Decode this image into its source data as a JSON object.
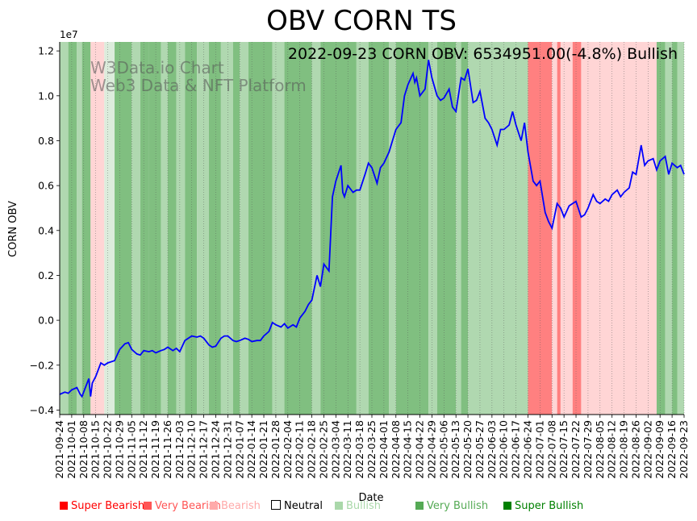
{
  "chart_data": {
    "type": "line",
    "title": "OBV CORN TS",
    "annotation": "2022-09-23 CORN OBV: 6534951.00(-4.8%) Bullish",
    "watermark": [
      "W3Data.io Chart",
      "Web3 Data & NFT Platform"
    ],
    "xlabel": "Date",
    "ylabel": "CORN OBV",
    "y_offset_label": "1e7",
    "ylim": [
      -4.2,
      12.4
    ],
    "y_ticks": [
      -0.4,
      -0.2,
      0.0,
      0.2,
      0.4,
      0.6,
      0.8,
      1.0,
      1.2
    ],
    "y_tick_labels": [
      "−0.4",
      "−0.2",
      "0.0",
      "0.2",
      "0.4",
      "0.6",
      "0.8",
      "1.0",
      "1.2"
    ],
    "x_range": [
      "2021-09-24",
      "2022-09-23"
    ],
    "x_ticks": [
      "2021-09-24",
      "2021-10-01",
      "2021-10-08",
      "2021-10-15",
      "2021-10-22",
      "2021-10-29",
      "2021-11-05",
      "2021-11-12",
      "2021-11-19",
      "2021-11-26",
      "2021-12-03",
      "2021-12-10",
      "2021-12-17",
      "2021-12-24",
      "2021-12-31",
      "2022-01-07",
      "2022-01-14",
      "2022-01-21",
      "2022-01-28",
      "2022-02-04",
      "2022-02-11",
      "2022-02-18",
      "2022-02-25",
      "2022-03-04",
      "2022-03-11",
      "2022-03-18",
      "2022-03-25",
      "2022-04-01",
      "2022-04-08",
      "2022-04-15",
      "2022-04-22",
      "2022-04-29",
      "2022-05-06",
      "2022-05-13",
      "2022-05-20",
      "2022-05-27",
      "2022-06-03",
      "2022-06-10",
      "2022-06-17",
      "2022-06-24",
      "2022-07-01",
      "2022-07-08",
      "2022-07-15",
      "2022-07-22",
      "2022-07-29",
      "2022-08-05",
      "2022-08-12",
      "2022-08-19",
      "2022-08-26",
      "2022-09-02",
      "2022-09-09",
      "2022-09-16",
      "2022-09-23"
    ],
    "grid": "vertical-dotted",
    "series": [
      {
        "color": "#0000ff",
        "points": [
          [
            "2021-09-24",
            -3.3
          ],
          [
            "2021-09-27",
            -3.2
          ],
          [
            "2021-09-29",
            -3.25
          ],
          [
            "2021-10-01",
            -3.1
          ],
          [
            "2021-10-04",
            -3.0
          ],
          [
            "2021-10-06",
            -3.3
          ],
          [
            "2021-10-07",
            -3.4
          ],
          [
            "2021-10-11",
            -2.6
          ],
          [
            "2021-10-12",
            -3.4
          ],
          [
            "2021-10-13",
            -2.8
          ],
          [
            "2021-10-15",
            -2.5
          ],
          [
            "2021-10-18",
            -1.9
          ],
          [
            "2021-10-20",
            -2.0
          ],
          [
            "2021-10-22",
            -1.9
          ],
          [
            "2021-10-26",
            -1.8
          ],
          [
            "2021-10-29",
            -1.3
          ],
          [
            "2021-11-01",
            -1.05
          ],
          [
            "2021-11-03",
            -1.0
          ],
          [
            "2021-11-05",
            -1.3
          ],
          [
            "2021-11-08",
            -1.5
          ],
          [
            "2021-11-10",
            -1.55
          ],
          [
            "2021-11-12",
            -1.35
          ],
          [
            "2021-11-15",
            -1.4
          ],
          [
            "2021-11-17",
            -1.35
          ],
          [
            "2021-11-19",
            -1.45
          ],
          [
            "2021-11-22",
            -1.35
          ],
          [
            "2021-11-24",
            -1.3
          ],
          [
            "2021-11-26",
            -1.2
          ],
          [
            "2021-11-29",
            -1.35
          ],
          [
            "2021-12-01",
            -1.25
          ],
          [
            "2021-12-03",
            -1.4
          ],
          [
            "2021-12-06",
            -0.9
          ],
          [
            "2021-12-08",
            -0.8
          ],
          [
            "2021-12-10",
            -0.7
          ],
          [
            "2021-12-13",
            -0.75
          ],
          [
            "2021-12-15",
            -0.7
          ],
          [
            "2021-12-17",
            -0.8
          ],
          [
            "2021-12-20",
            -1.1
          ],
          [
            "2021-12-22",
            -1.2
          ],
          [
            "2021-12-24",
            -1.15
          ],
          [
            "2021-12-27",
            -0.8
          ],
          [
            "2021-12-29",
            -0.7
          ],
          [
            "2021-12-31",
            -0.7
          ],
          [
            "2022-01-03",
            -0.9
          ],
          [
            "2022-01-05",
            -0.95
          ],
          [
            "2022-01-07",
            -0.9
          ],
          [
            "2022-01-10",
            -0.8
          ],
          [
            "2022-01-12",
            -0.85
          ],
          [
            "2022-01-14",
            -0.95
          ],
          [
            "2022-01-17",
            -0.9
          ],
          [
            "2022-01-19",
            -0.9
          ],
          [
            "2022-01-21",
            -0.7
          ],
          [
            "2022-01-24",
            -0.5
          ],
          [
            "2022-01-26",
            -0.1
          ],
          [
            "2022-01-28",
            -0.2
          ],
          [
            "2022-01-31",
            -0.3
          ],
          [
            "2022-02-02",
            -0.15
          ],
          [
            "2022-02-04",
            -0.35
          ],
          [
            "2022-02-07",
            -0.2
          ],
          [
            "2022-02-09",
            -0.3
          ],
          [
            "2022-02-11",
            0.1
          ],
          [
            "2022-02-14",
            0.4
          ],
          [
            "2022-02-16",
            0.7
          ],
          [
            "2022-02-18",
            0.9
          ],
          [
            "2022-02-21",
            2.0
          ],
          [
            "2022-02-23",
            1.5
          ],
          [
            "2022-02-25",
            2.5
          ],
          [
            "2022-02-28",
            2.2
          ],
          [
            "2022-03-02",
            5.5
          ],
          [
            "2022-03-04",
            6.2
          ],
          [
            "2022-03-07",
            6.9
          ],
          [
            "2022-03-08",
            5.7
          ],
          [
            "2022-03-09",
            5.5
          ],
          [
            "2022-03-11",
            6.0
          ],
          [
            "2022-03-14",
            5.7
          ],
          [
            "2022-03-16",
            5.8
          ],
          [
            "2022-03-18",
            5.8
          ],
          [
            "2022-03-21",
            6.5
          ],
          [
            "2022-03-23",
            7.0
          ],
          [
            "2022-03-25",
            6.8
          ],
          [
            "2022-03-28",
            6.1
          ],
          [
            "2022-03-30",
            6.8
          ],
          [
            "2022-04-01",
            7.0
          ],
          [
            "2022-04-04",
            7.5
          ],
          [
            "2022-04-06",
            8.0
          ],
          [
            "2022-04-08",
            8.5
          ],
          [
            "2022-04-11",
            8.8
          ],
          [
            "2022-04-13",
            10.0
          ],
          [
            "2022-04-15",
            10.5
          ],
          [
            "2022-04-18",
            11.0
          ],
          [
            "2022-04-19",
            10.6
          ],
          [
            "2022-04-20",
            10.8
          ],
          [
            "2022-04-22",
            10.0
          ],
          [
            "2022-04-25",
            10.3
          ],
          [
            "2022-04-27",
            11.6
          ],
          [
            "2022-04-29",
            10.8
          ],
          [
            "2022-05-02",
            10.0
          ],
          [
            "2022-05-04",
            9.8
          ],
          [
            "2022-05-06",
            9.9
          ],
          [
            "2022-05-09",
            10.3
          ],
          [
            "2022-05-11",
            9.5
          ],
          [
            "2022-05-13",
            9.3
          ],
          [
            "2022-05-16",
            10.8
          ],
          [
            "2022-05-18",
            10.7
          ],
          [
            "2022-05-20",
            11.2
          ],
          [
            "2022-05-23",
            9.7
          ],
          [
            "2022-05-25",
            9.8
          ],
          [
            "2022-05-27",
            10.2
          ],
          [
            "2022-05-30",
            9.0
          ],
          [
            "2022-06-01",
            8.8
          ],
          [
            "2022-06-03",
            8.5
          ],
          [
            "2022-06-06",
            7.8
          ],
          [
            "2022-06-08",
            8.5
          ],
          [
            "2022-06-10",
            8.5
          ],
          [
            "2022-06-13",
            8.7
          ],
          [
            "2022-06-15",
            9.3
          ],
          [
            "2022-06-17",
            8.7
          ],
          [
            "2022-06-20",
            8.0
          ],
          [
            "2022-06-22",
            8.8
          ],
          [
            "2022-06-24",
            7.5
          ],
          [
            "2022-06-27",
            6.2
          ],
          [
            "2022-06-29",
            6.0
          ],
          [
            "2022-07-01",
            6.2
          ],
          [
            "2022-07-04",
            4.8
          ],
          [
            "2022-07-06",
            4.4
          ],
          [
            "2022-07-08",
            4.1
          ],
          [
            "2022-07-11",
            5.2
          ],
          [
            "2022-07-13",
            5.0
          ],
          [
            "2022-07-15",
            4.6
          ],
          [
            "2022-07-18",
            5.1
          ],
          [
            "2022-07-20",
            5.2
          ],
          [
            "2022-07-22",
            5.3
          ],
          [
            "2022-07-25",
            4.6
          ],
          [
            "2022-07-27",
            4.7
          ],
          [
            "2022-07-29",
            5.0
          ],
          [
            "2022-08-01",
            5.6
          ],
          [
            "2022-08-03",
            5.3
          ],
          [
            "2022-08-05",
            5.2
          ],
          [
            "2022-08-08",
            5.4
          ],
          [
            "2022-08-10",
            5.3
          ],
          [
            "2022-08-12",
            5.6
          ],
          [
            "2022-08-15",
            5.8
          ],
          [
            "2022-08-17",
            5.5
          ],
          [
            "2022-08-19",
            5.7
          ],
          [
            "2022-08-22",
            5.9
          ],
          [
            "2022-08-24",
            6.6
          ],
          [
            "2022-08-26",
            6.5
          ],
          [
            "2022-08-29",
            7.8
          ],
          [
            "2022-08-31",
            6.9
          ],
          [
            "2022-09-02",
            7.1
          ],
          [
            "2022-09-05",
            7.2
          ],
          [
            "2022-09-07",
            6.7
          ],
          [
            "2022-09-09",
            7.1
          ],
          [
            "2022-09-12",
            7.3
          ],
          [
            "2022-09-14",
            6.5
          ],
          [
            "2022-09-16",
            7.0
          ],
          [
            "2022-09-19",
            6.8
          ],
          [
            "2022-09-21",
            6.9
          ],
          [
            "2022-09-23",
            6.5
          ]
        ]
      }
    ],
    "background_bands": [
      {
        "start": "2021-09-24",
        "end": "2021-09-29",
        "state": "Bullish"
      },
      {
        "start": "2021-09-29",
        "end": "2021-10-04",
        "state": "Very Bullish"
      },
      {
        "start": "2021-10-04",
        "end": "2021-10-07",
        "state": "Bullish"
      },
      {
        "start": "2021-10-07",
        "end": "2021-10-12",
        "state": "Very Bullish"
      },
      {
        "start": "2021-10-12",
        "end": "2021-10-20",
        "state": "Bearish"
      },
      {
        "start": "2021-10-20",
        "end": "2021-10-26",
        "state": "Neutral"
      },
      {
        "start": "2021-10-26",
        "end": "2021-11-05",
        "state": "Very Bullish"
      },
      {
        "start": "2021-11-05",
        "end": "2021-11-10",
        "state": "Bullish"
      },
      {
        "start": "2021-11-10",
        "end": "2021-11-15",
        "state": "Very Bullish"
      },
      {
        "start": "2021-11-15",
        "end": "2021-11-22",
        "state": "Very Bullish"
      },
      {
        "start": "2021-11-22",
        "end": "2021-11-26",
        "state": "Bullish"
      },
      {
        "start": "2021-11-26",
        "end": "2021-12-01",
        "state": "Very Bullish"
      },
      {
        "start": "2021-12-01",
        "end": "2021-12-06",
        "state": "Bullish"
      },
      {
        "start": "2021-12-06",
        "end": "2021-12-13",
        "state": "Very Bullish"
      },
      {
        "start": "2021-12-13",
        "end": "2021-12-20",
        "state": "Bullish"
      },
      {
        "start": "2021-12-20",
        "end": "2021-12-27",
        "state": "Very Bullish"
      },
      {
        "start": "2021-12-27",
        "end": "2022-01-03",
        "state": "Bullish"
      },
      {
        "start": "2022-01-03",
        "end": "2022-01-07",
        "state": "Very Bullish"
      },
      {
        "start": "2022-01-07",
        "end": "2022-01-12",
        "state": "Bullish"
      },
      {
        "start": "2022-01-12",
        "end": "2022-01-26",
        "state": "Very Bullish"
      },
      {
        "start": "2022-01-26",
        "end": "2022-02-02",
        "state": "Bullish"
      },
      {
        "start": "2022-02-02",
        "end": "2022-02-18",
        "state": "Very Bullish"
      },
      {
        "start": "2022-02-18",
        "end": "2022-02-23",
        "state": "Bullish"
      },
      {
        "start": "2022-02-23",
        "end": "2022-03-16",
        "state": "Very Bullish"
      },
      {
        "start": "2022-03-16",
        "end": "2022-03-23",
        "state": "Bullish"
      },
      {
        "start": "2022-03-23",
        "end": "2022-04-04",
        "state": "Very Bullish"
      },
      {
        "start": "2022-04-04",
        "end": "2022-04-08",
        "state": "Bullish"
      },
      {
        "start": "2022-04-08",
        "end": "2022-04-27",
        "state": "Very Bullish"
      },
      {
        "start": "2022-04-27",
        "end": "2022-05-02",
        "state": "Bullish"
      },
      {
        "start": "2022-05-02",
        "end": "2022-05-13",
        "state": "Very Bullish"
      },
      {
        "start": "2022-05-13",
        "end": "2022-05-16",
        "state": "Bullish"
      },
      {
        "start": "2022-05-16",
        "end": "2022-05-20",
        "state": "Very Bullish"
      },
      {
        "start": "2022-05-20",
        "end": "2022-06-24",
        "state": "Bullish"
      },
      {
        "start": "2022-06-24",
        "end": "2022-07-08",
        "state": "Very Bearish"
      },
      {
        "start": "2022-07-08",
        "end": "2022-07-11",
        "state": "Bearish"
      },
      {
        "start": "2022-07-11",
        "end": "2022-07-13",
        "state": "Very Bearish"
      },
      {
        "start": "2022-07-13",
        "end": "2022-07-20",
        "state": "Bearish"
      },
      {
        "start": "2022-07-20",
        "end": "2022-07-25",
        "state": "Very Bearish"
      },
      {
        "start": "2022-07-25",
        "end": "2022-09-07",
        "state": "Bearish"
      },
      {
        "start": "2022-09-07",
        "end": "2022-09-12",
        "state": "Very Bullish"
      },
      {
        "start": "2022-09-12",
        "end": "2022-09-16",
        "state": "Bullish"
      },
      {
        "start": "2022-09-16",
        "end": "2022-09-19",
        "state": "Very Bullish"
      },
      {
        "start": "2022-09-19",
        "end": "2022-09-23",
        "state": "Bullish"
      }
    ],
    "legend": [
      {
        "label": "Super Bearish",
        "color": "#ff0000",
        "text_color": "#ff0000"
      },
      {
        "label": "Very Bearish",
        "color": "#ff5555",
        "text_color": "#ff5555"
      },
      {
        "label": "Bearish",
        "color": "#ffaaaa",
        "text_color": "#ffaaaa"
      },
      {
        "label": "Neutral",
        "color": "#ffffff",
        "text_color": "#000000"
      },
      {
        "label": "Bullish",
        "color": "#aad8aa",
        "text_color": "#aad8aa"
      },
      {
        "label": "Very Bullish",
        "color": "#55aa55",
        "text_color": "#55aa55"
      },
      {
        "label": "Super Bullish",
        "color": "#008000",
        "text_color": "#008000"
      }
    ],
    "band_colors": {
      "Super Bearish": "#ff6666",
      "Very Bearish": "#ff8080",
      "Bearish": "#ffd5d5",
      "Neutral": "#dcecdc",
      "Bullish": "#b0d8b0",
      "Very Bullish": "#80bf80",
      "Super Bullish": "#55aa55"
    }
  }
}
